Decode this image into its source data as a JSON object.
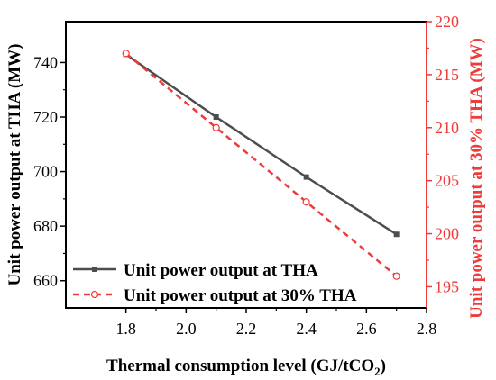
{
  "chart_data": {
    "type": "line",
    "x": [
      1.8,
      2.1,
      2.4,
      2.7
    ],
    "xlabel": "Thermal consumption level (GJ/tCO",
    "xlabel_sub": "2",
    "xlabel_end": ")",
    "xlim": [
      1.6,
      2.8
    ],
    "xticks": [
      1.8,
      2.0,
      2.2,
      2.4,
      2.6,
      2.8
    ],
    "xtick_labels": [
      "1.8",
      "2.0",
      "2.2",
      "2.4",
      "2.6",
      "2.8"
    ],
    "ylabel_left": "Unit power output at THA (MW)",
    "ylim_left": [
      650,
      755
    ],
    "yticks_left": [
      660,
      680,
      700,
      720,
      740
    ],
    "ytick_labels_left": [
      "660",
      "680",
      "700",
      "720",
      "740"
    ],
    "ylabel_right": "Unit power output at 30% THA (MW)",
    "ylim_right": [
      193,
      220
    ],
    "yticks_right": [
      195,
      200,
      205,
      210,
      215,
      220
    ],
    "ytick_labels_right": [
      "195",
      "200",
      "205",
      "210",
      "215",
      "220"
    ],
    "grid": false,
    "legend_position": "lower-left",
    "series": [
      {
        "name": "Unit power output at THA",
        "axis": "left",
        "values": [
          743,
          720,
          698,
          677
        ],
        "color": "#4d4d4d",
        "line_style": "solid",
        "marker": "filled-square"
      },
      {
        "name": "Unit power output at 30% THA",
        "axis": "right",
        "values": [
          217,
          210,
          203,
          196
        ],
        "color": "#ee3b3b",
        "line_style": "dashed",
        "marker": "open-circle"
      }
    ],
    "colors": {
      "axis_left": "#000000",
      "axis_right": "#ee3b3b"
    }
  }
}
